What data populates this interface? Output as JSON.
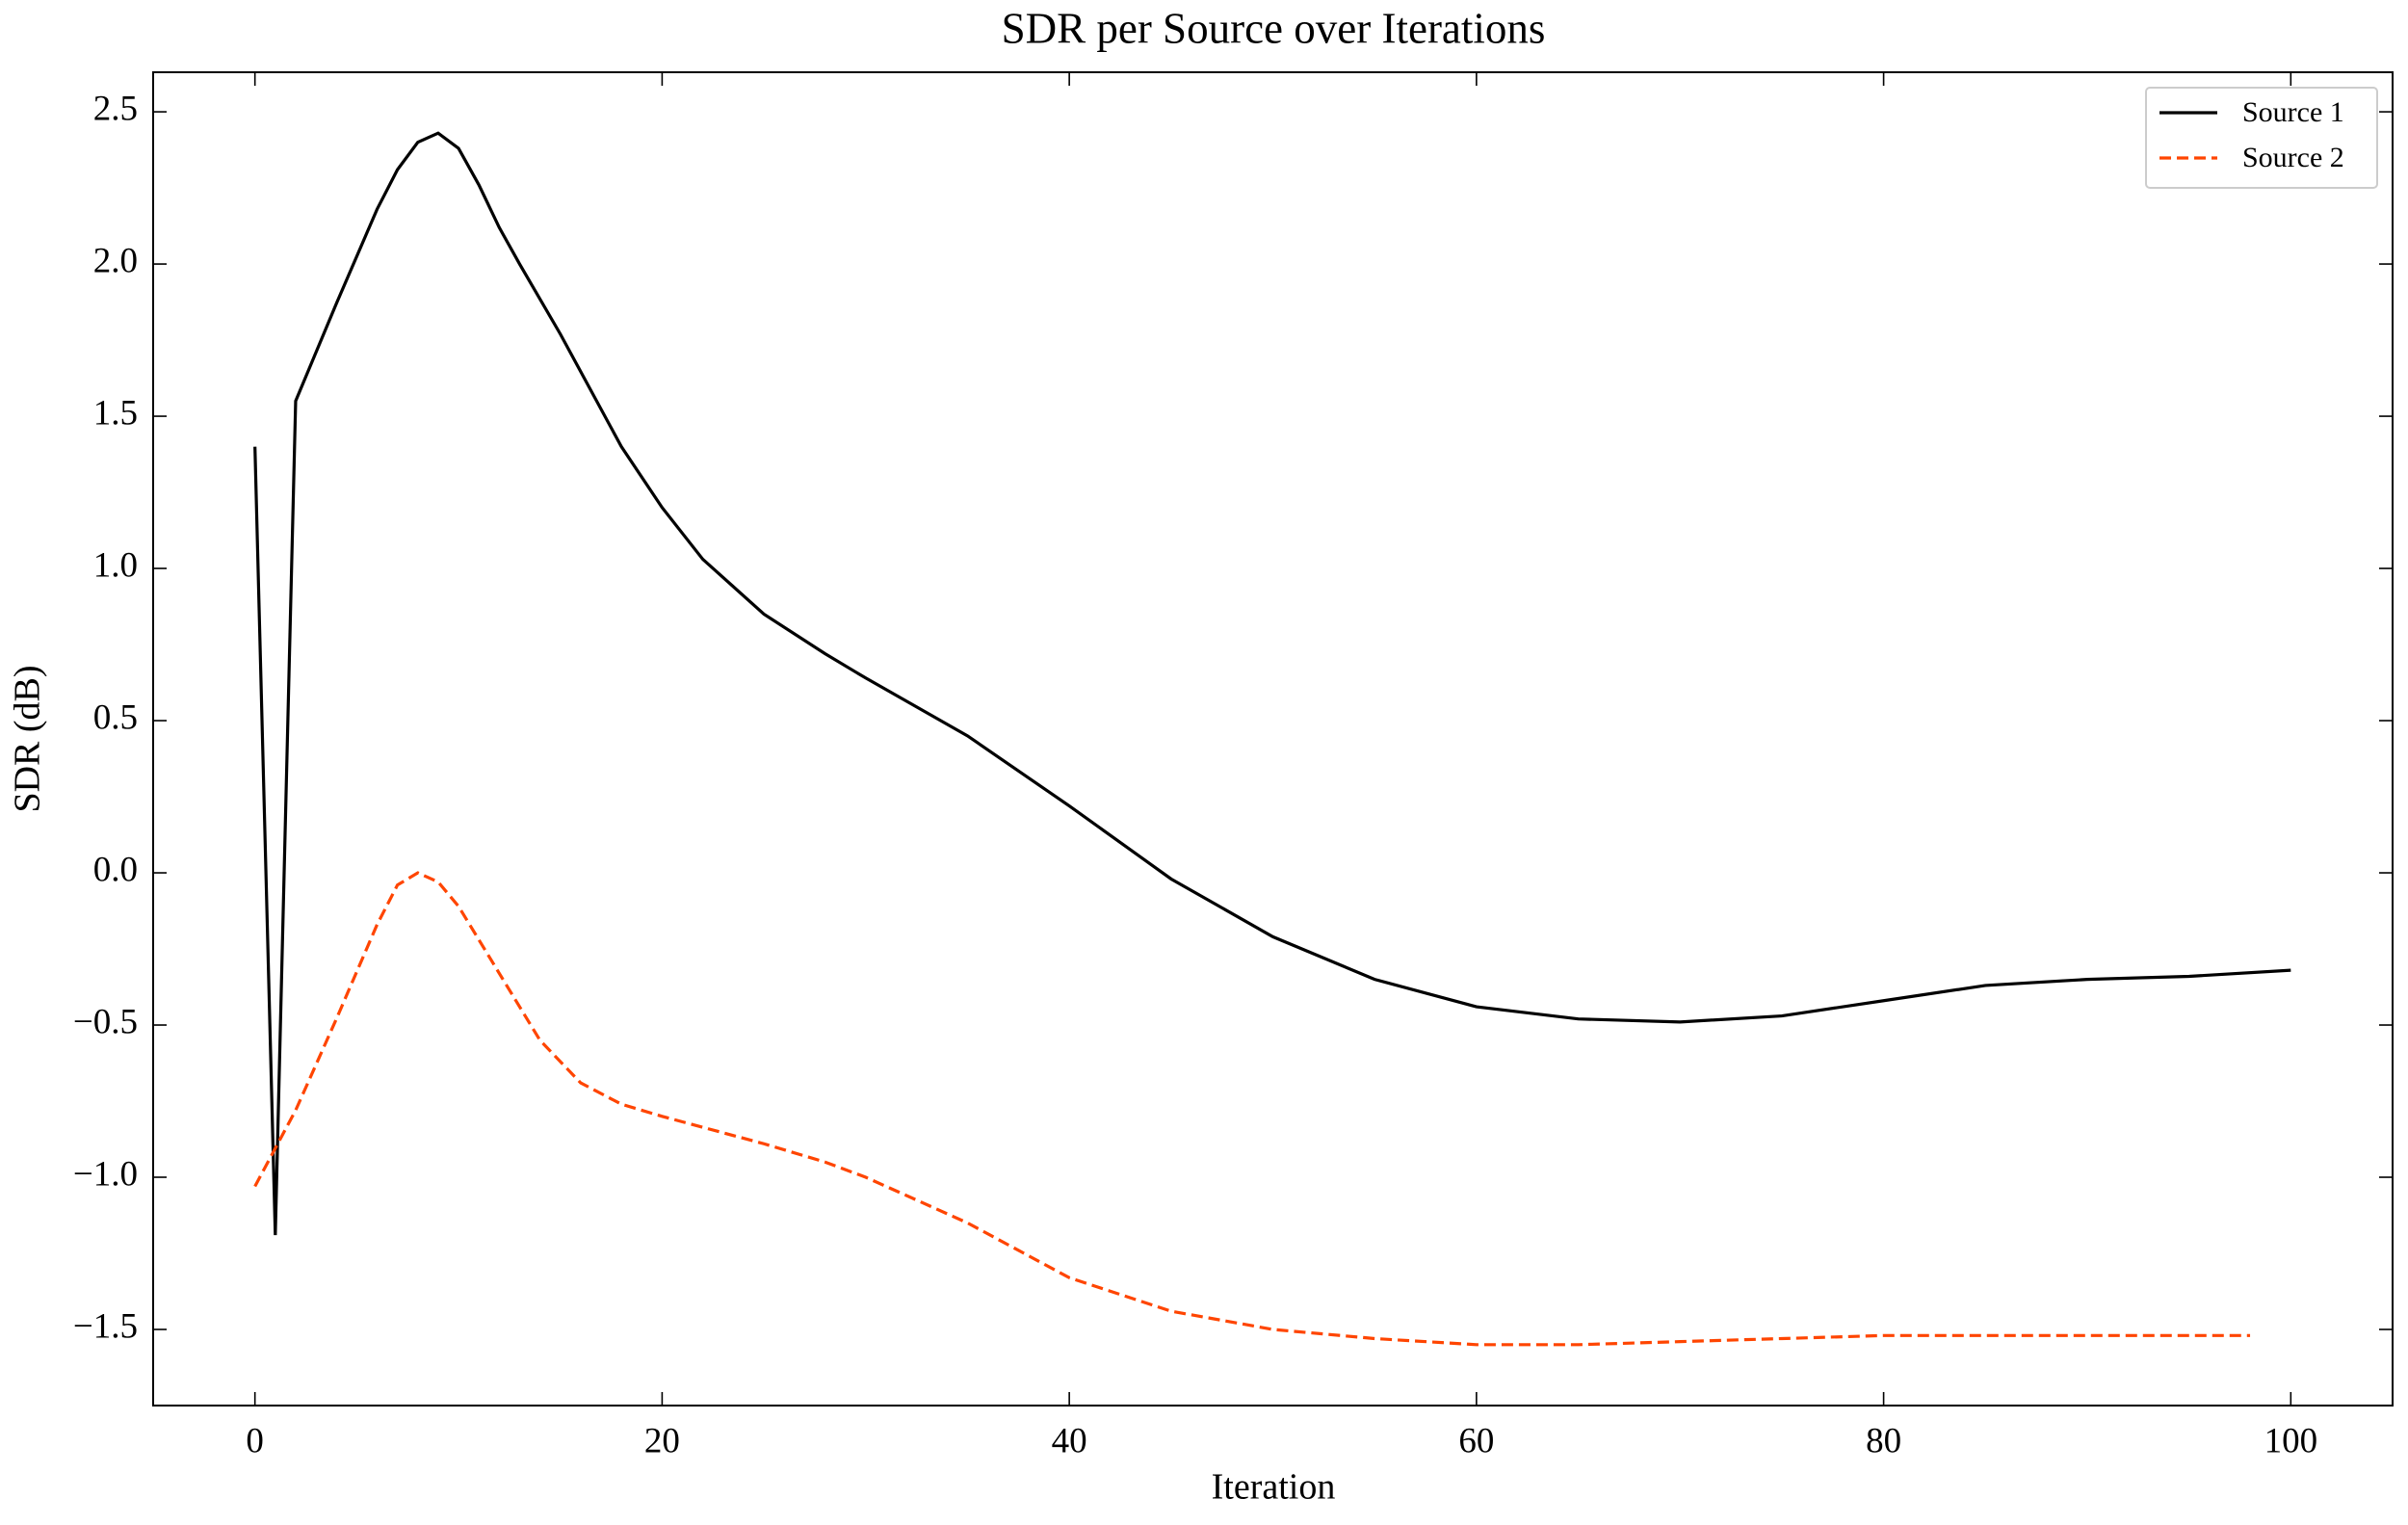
{
  "chart_data": {
    "type": "line",
    "title": "SDR per Source over Iterations",
    "x_label": "Iteration",
    "y_label": "SDR (dB)",
    "xlim": [
      -5,
      105
    ],
    "xticks": [
      0,
      20,
      40,
      60,
      80,
      100
    ],
    "ylim": [
      -1.75,
      2.63
    ],
    "yticks": [
      {
        "value": -1.5,
        "label": "−1.5"
      },
      {
        "value": -1.0,
        "label": "−1.0"
      },
      {
        "value": -0.5,
        "label": "−0.5"
      },
      {
        "value": 0.0,
        "label": "0.0"
      },
      0.5,
      {
        "value": 1.0,
        "label": "1.0"
      },
      1.5,
      {
        "value": 2.0,
        "label": "2.0"
      },
      2.5
    ],
    "legend": "upper right",
    "series": [
      {
        "name": "Source 1",
        "color": "#000000",
        "linestyle": "solid",
        "x": [
          0,
          1,
          2,
          4,
          6,
          7,
          8,
          9,
          10,
          11,
          12,
          13,
          15,
          18,
          20,
          22,
          25,
          28,
          30,
          35,
          40,
          45,
          50,
          55,
          60,
          65,
          70,
          75,
          80,
          85,
          90,
          95,
          100
        ],
        "values": [
          1.4,
          -1.19,
          1.55,
          1.87,
          2.18,
          2.31,
          2.4,
          2.43,
          2.38,
          2.26,
          2.12,
          2.0,
          1.77,
          1.4,
          1.2,
          1.03,
          0.85,
          0.72,
          0.64,
          0.45,
          0.22,
          -0.02,
          -0.21,
          -0.35,
          -0.44,
          -0.48,
          -0.49,
          -0.47,
          -0.42,
          -0.37,
          -0.35,
          -0.34,
          -0.32
        ]
      },
      {
        "name": "Source 2",
        "color": "#ff4500",
        "linestyle": "dashed",
        "x": [
          0,
          2,
          4,
          6,
          7,
          8,
          9,
          10,
          12,
          14,
          16,
          18,
          20,
          25,
          28,
          30,
          35,
          40,
          45,
          50,
          55,
          60,
          65,
          70,
          75,
          80,
          85,
          90,
          95,
          98
        ],
        "values": [
          -1.03,
          -0.78,
          -0.48,
          -0.17,
          -0.04,
          0.0,
          -0.03,
          -0.11,
          -0.33,
          -0.55,
          -0.69,
          -0.76,
          -0.8,
          -0.89,
          -0.95,
          -1.0,
          -1.15,
          -1.33,
          -1.44,
          -1.5,
          -1.53,
          -1.55,
          -1.55,
          -1.54,
          -1.53,
          -1.52,
          -1.52,
          -1.52,
          -1.52,
          -1.52
        ]
      }
    ]
  }
}
